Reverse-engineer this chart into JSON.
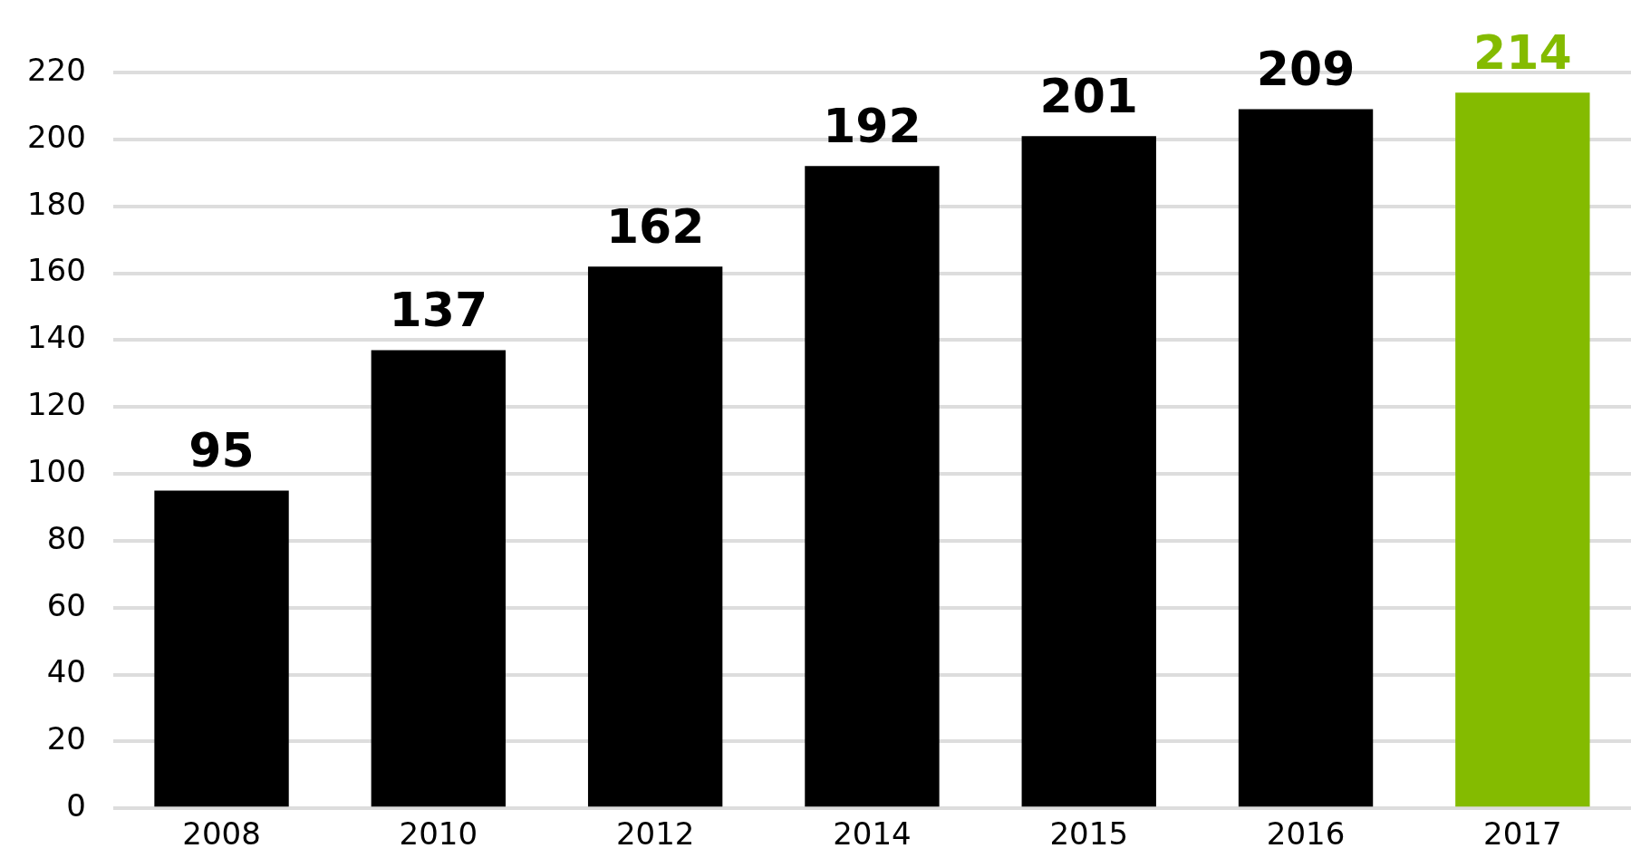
{
  "chart_data": {
    "type": "bar",
    "categories": [
      "2008",
      "2010",
      "2012",
      "2014",
      "2015",
      "2016",
      "2017"
    ],
    "values": [
      95,
      137,
      162,
      192,
      201,
      209,
      214
    ],
    "colors": [
      "#000000",
      "#000000",
      "#000000",
      "#000000",
      "#000000",
      "#000000",
      "#84bb00"
    ],
    "ylim": [
      0,
      220
    ],
    "yticks": [
      0,
      20,
      40,
      60,
      80,
      100,
      120,
      140,
      160,
      180,
      200,
      220
    ],
    "grid": "y",
    "data_labels": true,
    "legend": false
  }
}
